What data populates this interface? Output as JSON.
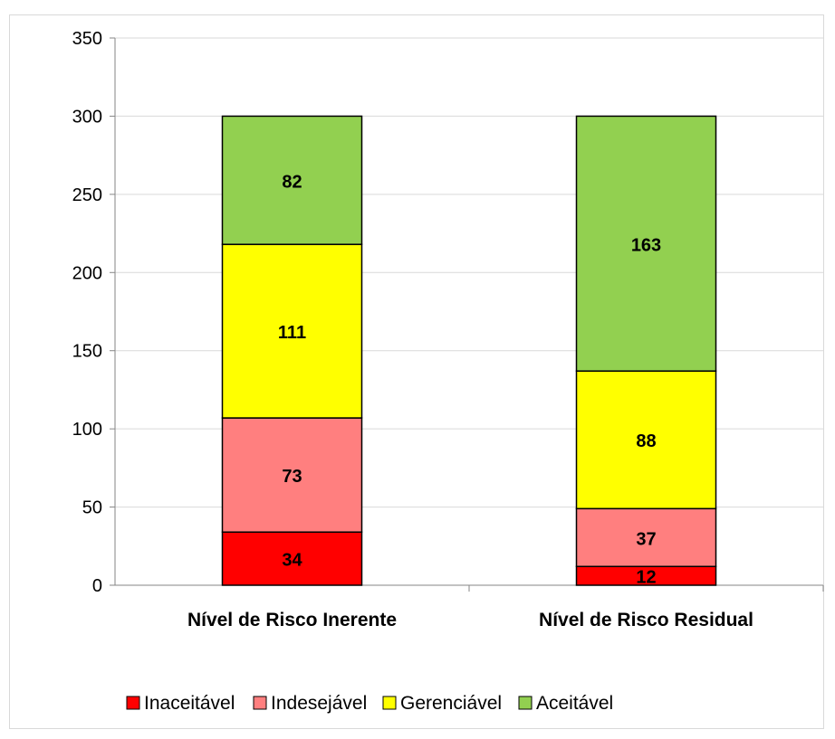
{
  "chart_data": {
    "type": "bar",
    "stacked": true,
    "categories": [
      "Nível de Risco Inerente",
      "Nível de Risco Residual"
    ],
    "series": [
      {
        "name": "Inaceitável",
        "color": "#ff0000",
        "values": [
          34,
          12
        ]
      },
      {
        "name": "Indesejável",
        "color": "#ff7f7f",
        "values": [
          73,
          37
        ]
      },
      {
        "name": "Gerenciável",
        "color": "#ffff00",
        "values": [
          111,
          88
        ]
      },
      {
        "name": "Aceitável",
        "color": "#92d050",
        "values": [
          82,
          163
        ]
      }
    ],
    "ylim": [
      0,
      350
    ],
    "yticks": [
      0,
      50,
      100,
      150,
      200,
      250,
      300,
      350
    ],
    "grid": true,
    "legend_position": "bottom",
    "title": "",
    "xlabel": "",
    "ylabel": ""
  }
}
